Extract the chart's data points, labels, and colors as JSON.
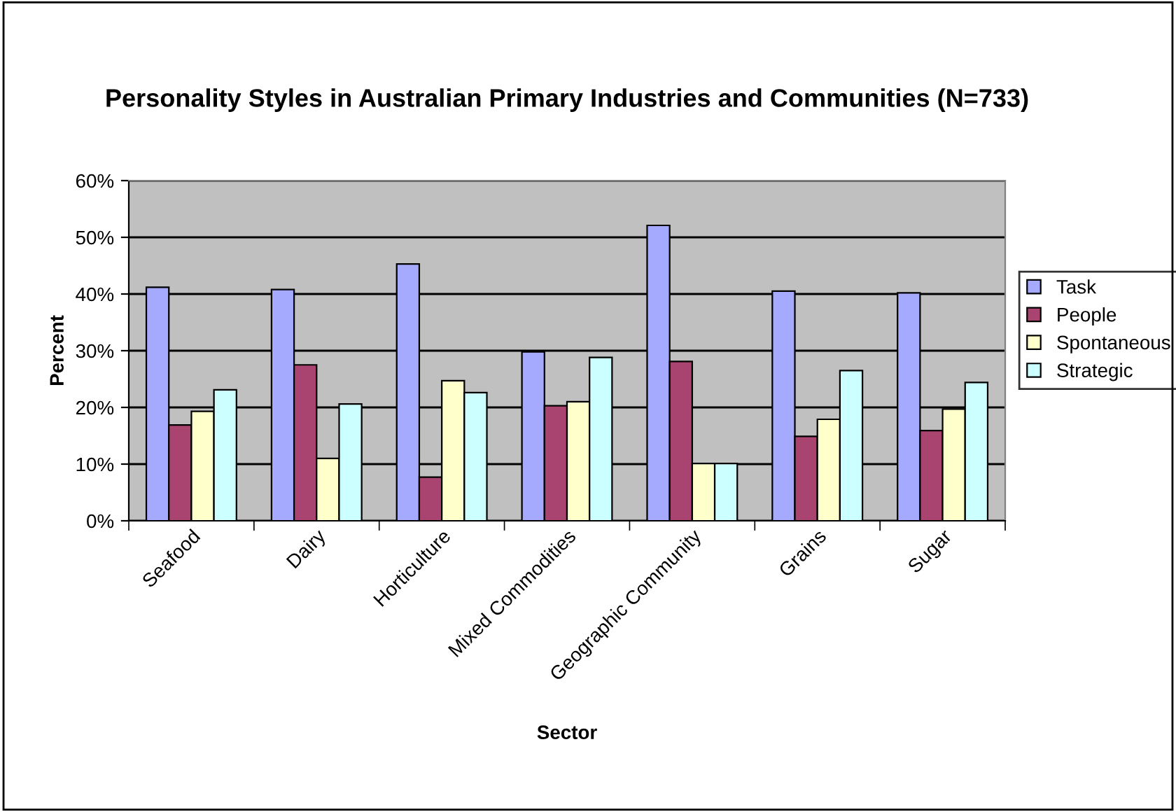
{
  "chart_data": {
    "type": "bar",
    "title": "Personality Styles in Australian Primary Industries and Communities (N=733)",
    "xlabel": "Sector",
    "ylabel": "Percent",
    "categories": [
      "Seafood",
      "Dairy",
      "Horticulture",
      "Mixed Commodities",
      "Geographic Community",
      "Grains",
      "Sugar"
    ],
    "series": [
      {
        "name": "Task",
        "color": "#a6aaff",
        "values": [
          41.2,
          40.8,
          45.3,
          29.8,
          52.1,
          40.5,
          40.2
        ]
      },
      {
        "name": "People",
        "color": "#a8446f",
        "values": [
          16.9,
          27.5,
          7.7,
          20.3,
          28.1,
          14.9,
          15.9
        ]
      },
      {
        "name": "Spontaneous",
        "color": "#ffffcc",
        "values": [
          19.3,
          11.0,
          24.7,
          21.0,
          10.1,
          17.9,
          19.7
        ]
      },
      {
        "name": "Strategic",
        "color": "#ccffff",
        "values": [
          23.1,
          20.6,
          22.6,
          28.8,
          10.1,
          26.5,
          24.4
        ]
      }
    ],
    "ylim": [
      0,
      60
    ],
    "yticks": [
      {
        "value": 0,
        "label": "0%"
      },
      {
        "value": 10,
        "label": "10%"
      },
      {
        "value": 20,
        "label": "20%"
      },
      {
        "value": 30,
        "label": "30%"
      },
      {
        "value": 40,
        "label": "40%"
      },
      {
        "value": 50,
        "label": "50%"
      },
      {
        "value": 60,
        "label": "60%"
      }
    ],
    "grid": "y",
    "legend": "right"
  }
}
